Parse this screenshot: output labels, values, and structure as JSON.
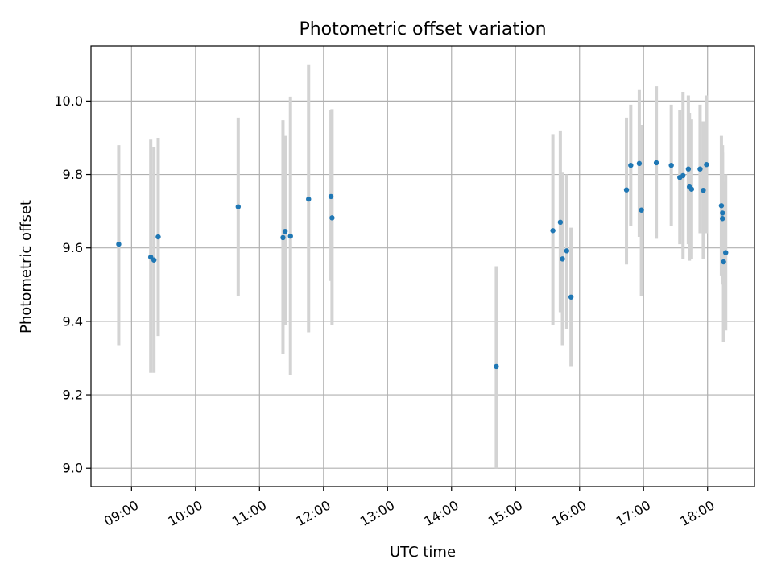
{
  "chart_data": {
    "type": "scatter",
    "title": "Photometric offset variation",
    "xlabel": "UTC time",
    "ylabel": "Photometric offset",
    "x_unit": "time (HH:MM)",
    "xlim": [
      "08:22",
      "18:44"
    ],
    "ylim": [
      8.95,
      10.15
    ],
    "x_ticks": [
      "09:00",
      "10:00",
      "11:00",
      "12:00",
      "13:00",
      "14:00",
      "15:00",
      "16:00",
      "17:00",
      "18:00"
    ],
    "y_ticks": [
      "9.0",
      "9.2",
      "9.4",
      "9.6",
      "9.8",
      "10.0"
    ],
    "grid": true,
    "legend": "none",
    "colors": {
      "point": "#1f77b4",
      "errorbar": "#d3d3d3",
      "grid": "#b0b0b0"
    },
    "points": [
      {
        "x": "08:48",
        "y": 9.61,
        "ylo": 9.335,
        "yhi": 9.88
      },
      {
        "x": "09:18",
        "y": 9.575,
        "ylo": 9.26,
        "yhi": 9.895
      },
      {
        "x": "09:21",
        "y": 9.567,
        "ylo": 9.26,
        "yhi": 9.875
      },
      {
        "x": "09:25",
        "y": 9.63,
        "ylo": 9.36,
        "yhi": 9.9
      },
      {
        "x": "10:40",
        "y": 9.712,
        "ylo": 9.47,
        "yhi": 9.955
      },
      {
        "x": "11:22",
        "y": 9.628,
        "ylo": 9.31,
        "yhi": 9.948
      },
      {
        "x": "11:24",
        "y": 9.645,
        "ylo": 9.39,
        "yhi": 9.905
      },
      {
        "x": "11:29",
        "y": 9.632,
        "ylo": 9.255,
        "yhi": 10.012
      },
      {
        "x": "11:46",
        "y": 9.733,
        "ylo": 9.37,
        "yhi": 10.098
      },
      {
        "x": "12:07",
        "y": 9.74,
        "ylo": 9.51,
        "yhi": 9.975
      },
      {
        "x": "12:08",
        "y": 9.682,
        "ylo": 9.39,
        "yhi": 9.978
      },
      {
        "x": "14:42",
        "y": 9.277,
        "ylo": 9.0,
        "yhi": 9.55
      },
      {
        "x": "15:35",
        "y": 9.647,
        "ylo": 9.39,
        "yhi": 9.91
      },
      {
        "x": "15:42",
        "y": 9.67,
        "ylo": 9.425,
        "yhi": 9.92
      },
      {
        "x": "15:44",
        "y": 9.57,
        "ylo": 9.335,
        "yhi": 9.805
      },
      {
        "x": "15:48",
        "y": 9.592,
        "ylo": 9.38,
        "yhi": 9.8
      },
      {
        "x": "15:52",
        "y": 9.466,
        "ylo": 9.278,
        "yhi": 9.655
      },
      {
        "x": "16:44",
        "y": 9.758,
        "ylo": 9.555,
        "yhi": 9.955
      },
      {
        "x": "16:48",
        "y": 9.825,
        "ylo": 9.66,
        "yhi": 9.99
      },
      {
        "x": "16:56",
        "y": 9.83,
        "ylo": 9.63,
        "yhi": 10.03
      },
      {
        "x": "16:58",
        "y": 9.703,
        "ylo": 9.47,
        "yhi": 9.935
      },
      {
        "x": "17:12",
        "y": 9.832,
        "ylo": 9.625,
        "yhi": 10.04
      },
      {
        "x": "17:26",
        "y": 9.825,
        "ylo": 9.66,
        "yhi": 9.99
      },
      {
        "x": "17:34",
        "y": 9.792,
        "ylo": 9.61,
        "yhi": 9.975
      },
      {
        "x": "17:37",
        "y": 9.797,
        "ylo": 9.57,
        "yhi": 10.025
      },
      {
        "x": "17:42",
        "y": 9.815,
        "ylo": 9.61,
        "yhi": 10.015
      },
      {
        "x": "17:43",
        "y": 9.766,
        "ylo": 9.565,
        "yhi": 9.968
      },
      {
        "x": "17:45",
        "y": 9.76,
        "ylo": 9.57,
        "yhi": 9.95
      },
      {
        "x": "17:53",
        "y": 9.815,
        "ylo": 9.64,
        "yhi": 9.99
      },
      {
        "x": "17:56",
        "y": 9.757,
        "ylo": 9.57,
        "yhi": 9.945
      },
      {
        "x": "17:59",
        "y": 9.827,
        "ylo": 9.64,
        "yhi": 10.015
      },
      {
        "x": "18:13",
        "y": 9.715,
        "ylo": 9.525,
        "yhi": 9.905
      },
      {
        "x": "18:14",
        "y": 9.695,
        "ylo": 9.51,
        "yhi": 9.88
      },
      {
        "x": "18:14",
        "y": 9.68,
        "ylo": 9.5,
        "yhi": 9.86
      },
      {
        "x": "18:15",
        "y": 9.562,
        "ylo": 9.345,
        "yhi": 9.78
      },
      {
        "x": "18:17",
        "y": 9.587,
        "ylo": 9.375,
        "yhi": 9.8
      }
    ]
  }
}
